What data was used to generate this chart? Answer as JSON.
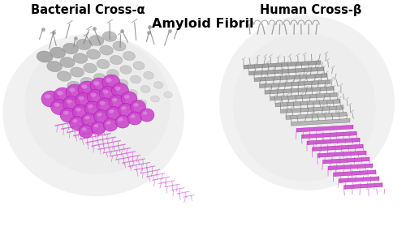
{
  "title_left": "Bacterial Cross-α",
  "title_right": "Human Cross-β",
  "subtitle": "Amyloid Fibril",
  "bg_color": "#ffffff",
  "purple": "#cc44cc",
  "purple_light": "#dd88dd",
  "purple_blob": "#e8b8e8",
  "gray_dark": "#888888",
  "gray_mid": "#aaaaaa",
  "gray_light": "#cccccc",
  "blob_color": "#dedede",
  "title_fontsize": 10.5,
  "subtitle_fontsize": 11.5
}
